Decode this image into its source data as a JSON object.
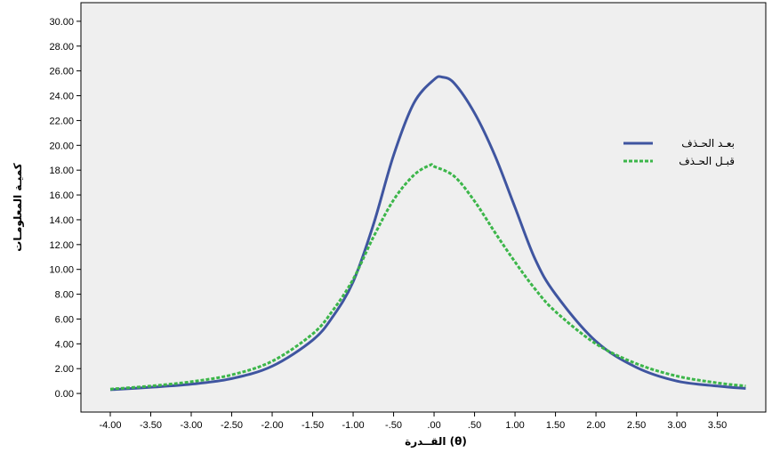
{
  "chart_data": {
    "type": "line",
    "xlabel": "القــدرة (θ)",
    "ylabel": "كميـة المعلومـات",
    "xlim": [
      -4.0,
      3.9
    ],
    "ylim": [
      -1.5,
      31.5
    ],
    "x_ticks": [
      -4.0,
      -3.5,
      -3.0,
      -2.5,
      -2.0,
      -1.5,
      -1.0,
      -0.5,
      0.0,
      0.5,
      1.0,
      1.5,
      2.0,
      2.5,
      3.0,
      3.5
    ],
    "x_tick_labels": [
      "-4.00",
      "-3.50",
      "-3.00",
      "-2.50",
      "-2.00",
      "-1.50",
      "-1.00",
      "-.50",
      ".00",
      ".50",
      "1.00",
      "1.50",
      "2.00",
      "2.50",
      "3.00",
      "3.50"
    ],
    "y_ticks": [
      0,
      2,
      4,
      6,
      8,
      10,
      12,
      14,
      16,
      18,
      20,
      22,
      24,
      26,
      28,
      30
    ],
    "y_tick_labels": [
      "0.00",
      "2.00",
      "4.00",
      "6.00",
      "8.00",
      "10.00",
      "12.00",
      "14.00",
      "16.00",
      "18.00",
      "20.00",
      "22.00",
      "24.00",
      "26.00",
      "28.00",
      "30.00"
    ],
    "grid": false,
    "legend_position": "right",
    "plot_background": "#efefef",
    "series": [
      {
        "name": "بعـد الحـذف",
        "color": "#3f55a0",
        "style": "solid",
        "x": [
          -4.0,
          -3.5,
          -3.0,
          -2.5,
          -2.0,
          -1.5,
          -1.25,
          -1.0,
          -0.75,
          -0.5,
          -0.25,
          0.0,
          0.1,
          0.25,
          0.5,
          0.75,
          1.0,
          1.25,
          1.5,
          2.0,
          2.5,
          3.0,
          3.5,
          3.85
        ],
        "y": [
          0.3,
          0.5,
          0.75,
          1.2,
          2.2,
          4.3,
          6.2,
          9.0,
          13.6,
          19.2,
          23.4,
          25.3,
          25.5,
          25.0,
          22.6,
          19.2,
          15.0,
          10.8,
          8.0,
          4.2,
          2.1,
          1.0,
          0.6,
          0.4
        ]
      },
      {
        "name": "قبـل الحـذف",
        "color": "#3cb64a",
        "style": "dashed",
        "x": [
          -4.0,
          -3.5,
          -3.0,
          -2.5,
          -2.0,
          -1.5,
          -1.25,
          -1.0,
          -0.75,
          -0.5,
          -0.25,
          -0.05,
          0.0,
          0.25,
          0.5,
          0.75,
          1.0,
          1.25,
          1.5,
          2.0,
          2.5,
          3.0,
          3.5,
          3.85
        ],
        "y": [
          0.35,
          0.6,
          0.95,
          1.5,
          2.6,
          4.8,
          6.7,
          9.2,
          12.6,
          15.6,
          17.6,
          18.4,
          18.3,
          17.5,
          15.5,
          13.0,
          10.6,
          8.4,
          6.6,
          4.0,
          2.4,
          1.4,
          0.85,
          0.6
        ]
      }
    ]
  }
}
